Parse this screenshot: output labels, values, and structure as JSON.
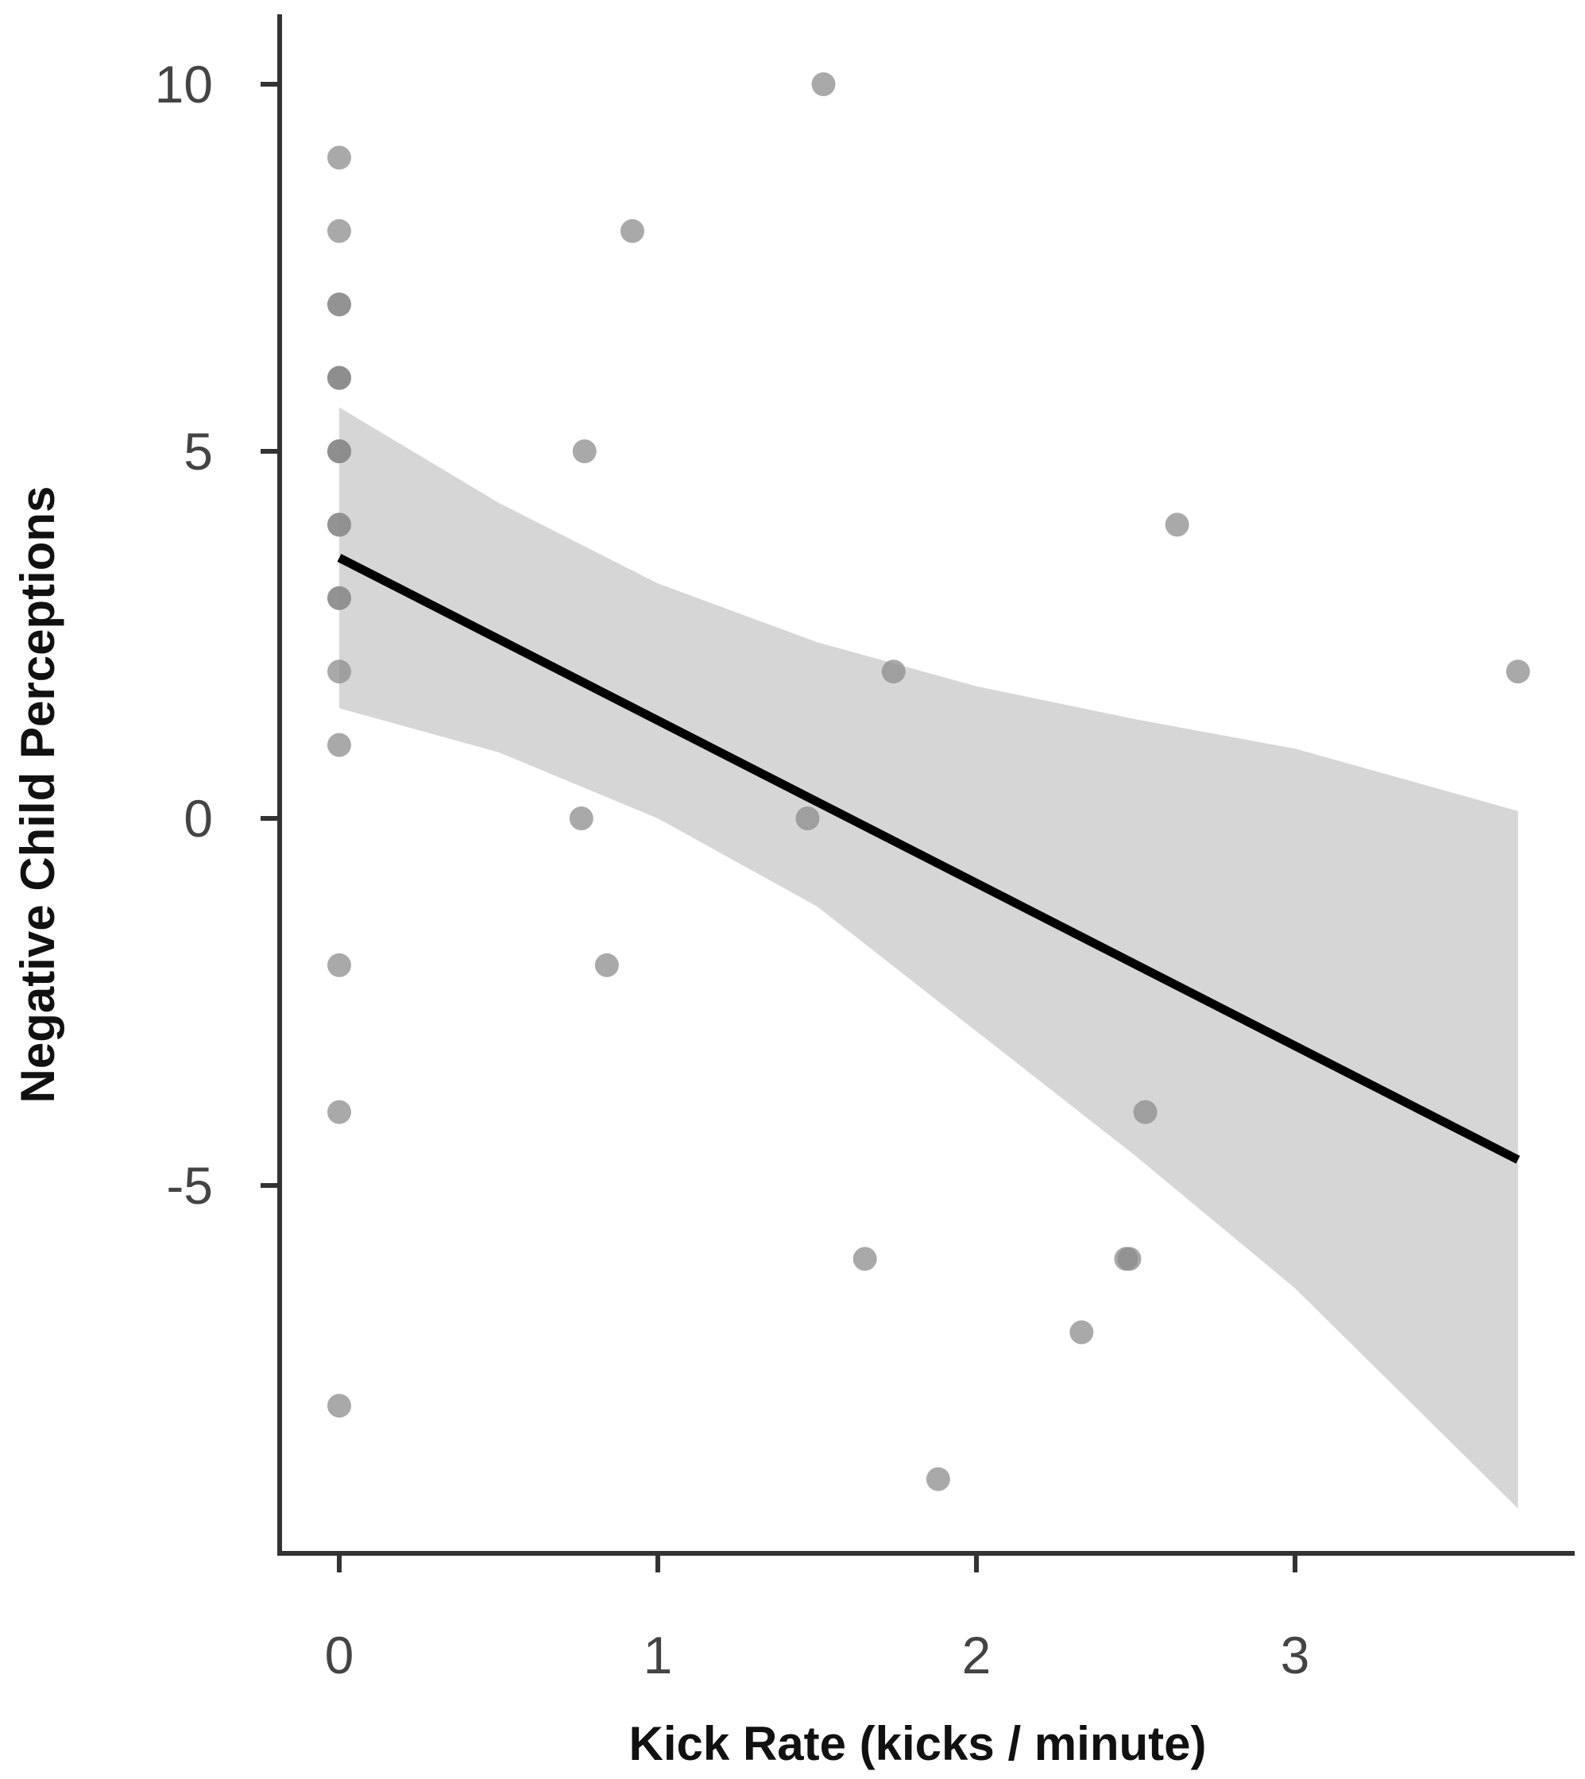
{
  "chart_data": {
    "type": "scatter",
    "title": "",
    "xlabel": "Kick Rate (kicks / minute)",
    "ylabel": "Negative Child Perceptions",
    "xlim": [
      -0.2,
      3.85
    ],
    "ylim": [
      -9.8,
      11.0
    ],
    "x_ticks": [
      {
        "value": 0,
        "label": "0"
      },
      {
        "value": 1,
        "label": "1"
      },
      {
        "value": 2,
        "label": "2"
      },
      {
        "value": 3,
        "label": "3"
      }
    ],
    "y_ticks": [
      {
        "value": -5,
        "label": "-5"
      },
      {
        "value": 0,
        "label": "0"
      },
      {
        "value": 5,
        "label": "5"
      },
      {
        "value": 10,
        "label": "10"
      }
    ],
    "grid": false,
    "legend": "none",
    "points": [
      {
        "x": 0,
        "y": 9
      },
      {
        "x": 0,
        "y": 8
      },
      {
        "x": 0,
        "y": 7
      },
      {
        "x": 0,
        "y": 7
      },
      {
        "x": 0,
        "y": 6
      },
      {
        "x": 0,
        "y": 6
      },
      {
        "x": 0,
        "y": 6
      },
      {
        "x": 0,
        "y": 5
      },
      {
        "x": 0,
        "y": 5
      },
      {
        "x": 0,
        "y": 5
      },
      {
        "x": 0,
        "y": 4
      },
      {
        "x": 0,
        "y": 4
      },
      {
        "x": 0,
        "y": 3
      },
      {
        "x": 0,
        "y": 3
      },
      {
        "x": 0,
        "y": 2
      },
      {
        "x": 0,
        "y": 1
      },
      {
        "x": 0,
        "y": -2
      },
      {
        "x": 0,
        "y": -4
      },
      {
        "x": 0,
        "y": -8
      },
      {
        "x": 1.52,
        "y": 10
      },
      {
        "x": 0.92,
        "y": 8
      },
      {
        "x": 0.77,
        "y": 5
      },
      {
        "x": 2.63,
        "y": 4
      },
      {
        "x": 1.74,
        "y": 2
      },
      {
        "x": 3.7,
        "y": 2
      },
      {
        "x": 0.76,
        "y": 0
      },
      {
        "x": 1.47,
        "y": 0
      },
      {
        "x": 0.84,
        "y": -2
      },
      {
        "x": 2.53,
        "y": -4
      },
      {
        "x": 1.65,
        "y": -6
      },
      {
        "x": 2.47,
        "y": -6
      },
      {
        "x": 2.48,
        "y": -6
      },
      {
        "x": 2.33,
        "y": -7
      },
      {
        "x": 1.88,
        "y": -9
      }
    ],
    "regression_line": {
      "x": [
        0,
        3.7
      ],
      "y": [
        3.55,
        -4.65
      ]
    },
    "confidence_band": {
      "x": [
        0,
        0.5,
        1.0,
        1.5,
        2.0,
        2.5,
        3.0,
        3.7
      ],
      "upper": [
        5.6,
        4.3,
        3.2,
        2.4,
        1.8,
        1.35,
        0.95,
        0.1
      ],
      "lower": [
        1.5,
        0.9,
        0.0,
        -1.2,
        -2.9,
        -4.6,
        -6.4,
        -9.4
      ]
    },
    "colors": {
      "point": "#8c8c8c",
      "line": "#000000",
      "band": "#d6d6d6",
      "axis": "#333333"
    }
  }
}
